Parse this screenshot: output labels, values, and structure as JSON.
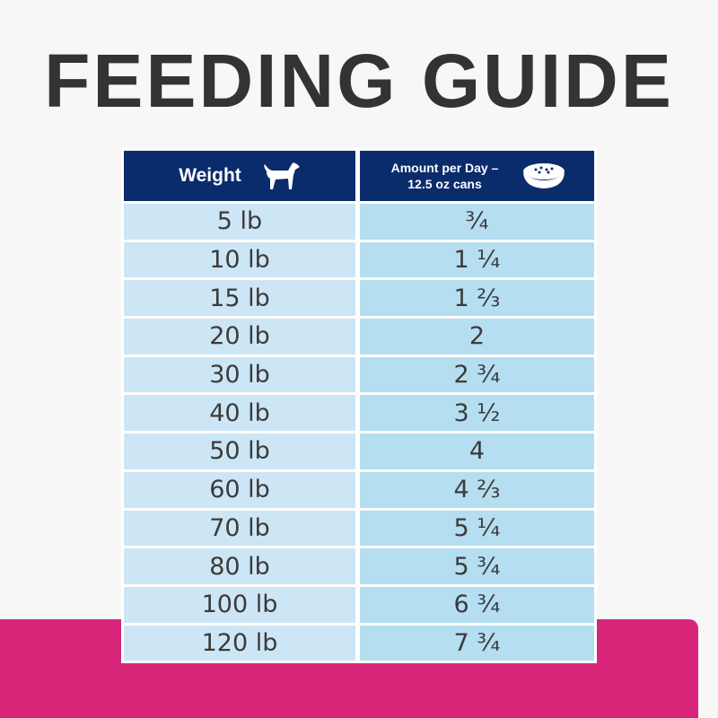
{
  "header": {
    "title": "FEEDING GUIDE"
  },
  "table": {
    "headers": [
      "Weight",
      "Amount per Day – 12.5 oz cans"
    ],
    "rows": [
      [
        "5 lb",
        "¾"
      ],
      [
        "10 lb",
        "1 ¼"
      ],
      [
        "15 lb",
        "1 ⅔"
      ],
      [
        "20 lb",
        "2"
      ],
      [
        "30 lb",
        "2 ¾"
      ],
      [
        "40 lb",
        "3 ½"
      ],
      [
        "50 lb",
        "4"
      ],
      [
        "60 lb",
        "4 ⅔"
      ],
      [
        "70 lb",
        "5 ¼"
      ],
      [
        "80 lb",
        "5 ¾"
      ],
      [
        "100 lb",
        "6 ¾"
      ],
      [
        "120 lb",
        "7 ¾"
      ]
    ]
  }
}
